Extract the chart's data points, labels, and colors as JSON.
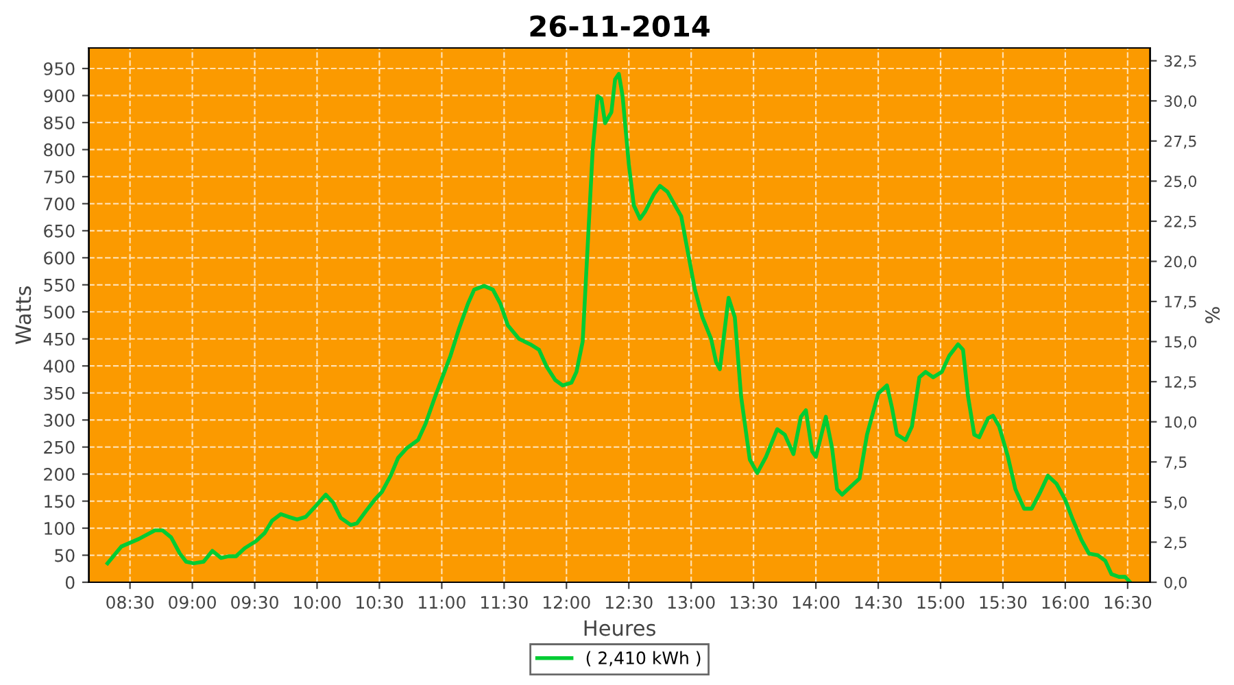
{
  "chart_data": {
    "type": "line",
    "title": "26-11-2014",
    "xlabel": "Heures",
    "ylabel": "Watts",
    "y2label": "%",
    "x": [
      8.32,
      8.43,
      8.57,
      8.7,
      8.76,
      8.83,
      8.9,
      8.95,
      9.01,
      9.09,
      9.16,
      9.23,
      9.29,
      9.35,
      9.42,
      9.51,
      9.58,
      9.64,
      9.71,
      9.77,
      9.84,
      9.91,
      9.99,
      10.07,
      10.13,
      10.19,
      10.27,
      10.32,
      10.39,
      10.46,
      10.52,
      10.59,
      10.65,
      10.72,
      10.81,
      10.87,
      10.94,
      11.01,
      11.07,
      11.14,
      11.21,
      11.26,
      11.34,
      11.41,
      11.47,
      11.53,
      11.62,
      11.71,
      11.78,
      11.84,
      11.91,
      11.97,
      12.04,
      12.08,
      12.13,
      12.17,
      12.21,
      12.25,
      12.28,
      12.31,
      12.36,
      12.39,
      12.42,
      12.45,
      12.5,
      12.54,
      12.59,
      12.63,
      12.7,
      12.75,
      12.81,
      12.87,
      12.92,
      12.96,
      13.03,
      13.09,
      13.16,
      13.2,
      13.23,
      13.27,
      13.3,
      13.35,
      13.4,
      13.47,
      13.53,
      13.6,
      13.69,
      13.75,
      13.82,
      13.88,
      13.92,
      13.97,
      14.0,
      14.08,
      14.13,
      14.17,
      14.21,
      14.28,
      14.35,
      14.41,
      14.5,
      14.57,
      14.61,
      14.65,
      14.72,
      14.77,
      14.83,
      14.88,
      14.94,
      15.01,
      15.07,
      15.14,
      15.18,
      15.22,
      15.27,
      15.31,
      15.38,
      15.42,
      15.47,
      15.54,
      15.6,
      15.67,
      15.73,
      15.8,
      15.86,
      15.93,
      16.0,
      16.06,
      16.13,
      16.19,
      16.26,
      16.32,
      16.37,
      16.43,
      16.48,
      16.52
    ],
    "series": [
      {
        "name": "( 2,410 kWh )",
        "color": "#00cc33",
        "values": [
          35,
          66,
          80,
          96,
          96,
          83,
          53,
          38,
          35,
          38,
          58,
          45,
          48,
          48,
          63,
          76,
          91,
          114,
          126,
          121,
          116,
          121,
          141,
          162,
          147,
          119,
          106,
          109,
          131,
          152,
          167,
          197,
          230,
          248,
          263,
          293,
          339,
          382,
          419,
          470,
          515,
          541,
          548,
          541,
          515,
          475,
          450,
          440,
          430,
          399,
          374,
          364,
          369,
          389,
          445,
          622,
          798,
          899,
          894,
          849,
          869,
          930,
          940,
          899,
          773,
          697,
          672,
          685,
          717,
          733,
          722,
          697,
          677,
          627,
          541,
          490,
          450,
          407,
          394,
          470,
          526,
          490,
          344,
          227,
          202,
          232,
          283,
          273,
          237,
          306,
          318,
          242,
          232,
          306,
          248,
          172,
          162,
          177,
          192,
          273,
          349,
          364,
          323,
          273,
          263,
          288,
          379,
          389,
          379,
          389,
          419,
          440,
          430,
          344,
          273,
          268,
          303,
          308,
          288,
          232,
          172,
          136,
          136,
          167,
          197,
          182,
          152,
          116,
          78,
          53,
          50,
          40,
          15,
          10,
          10,
          0
        ]
      }
    ],
    "xlim": [
      8.17,
      16.68
    ],
    "xticks": [
      {
        "value": 8.5,
        "label": "08:30"
      },
      {
        "value": 9,
        "label": "09:00"
      },
      {
        "value": 9.5,
        "label": "09:30"
      },
      {
        "value": 10,
        "label": "10:00"
      },
      {
        "value": 10.5,
        "label": "10:30"
      },
      {
        "value": 11,
        "label": "11:00"
      },
      {
        "value": 11.5,
        "label": "11:30"
      },
      {
        "value": 12,
        "label": "12:00"
      },
      {
        "value": 12.5,
        "label": "12:30"
      },
      {
        "value": 13,
        "label": "13:00"
      },
      {
        "value": 13.5,
        "label": "13:30"
      },
      {
        "value": 14,
        "label": "14:00"
      },
      {
        "value": 14.5,
        "label": "14:30"
      },
      {
        "value": 15,
        "label": "15:00"
      },
      {
        "value": 15.5,
        "label": "15:30"
      },
      {
        "value": 16,
        "label": "16:00"
      },
      {
        "value": 16.5,
        "label": "16:30"
      }
    ],
    "ylim": [
      0,
      988
    ],
    "yticks": [
      0,
      50,
      100,
      150,
      200,
      250,
      300,
      350,
      400,
      450,
      500,
      550,
      600,
      650,
      700,
      750,
      800,
      850,
      900,
      950
    ],
    "y2lim": [
      0,
      33.3
    ],
    "y2ticks": [
      {
        "value": 0,
        "label": "0,0"
      },
      {
        "value": 2.5,
        "label": "2,5"
      },
      {
        "value": 5,
        "label": "5,0"
      },
      {
        "value": 7.5,
        "label": "7,5"
      },
      {
        "value": 10,
        "label": "10,0"
      },
      {
        "value": 12.5,
        "label": "12,5"
      },
      {
        "value": 15,
        "label": "15,0"
      },
      {
        "value": 17.5,
        "label": "17,5"
      },
      {
        "value": 20,
        "label": "20,0"
      },
      {
        "value": 22.5,
        "label": "22,5"
      },
      {
        "value": 25,
        "label": "25,0"
      },
      {
        "value": 27.5,
        "label": "27,5"
      },
      {
        "value": 30,
        "label": "30,0"
      },
      {
        "value": 32.5,
        "label": "32,5"
      }
    ],
    "grid": true,
    "legend": "bottom",
    "marker": "none",
    "line_style": "solid"
  }
}
